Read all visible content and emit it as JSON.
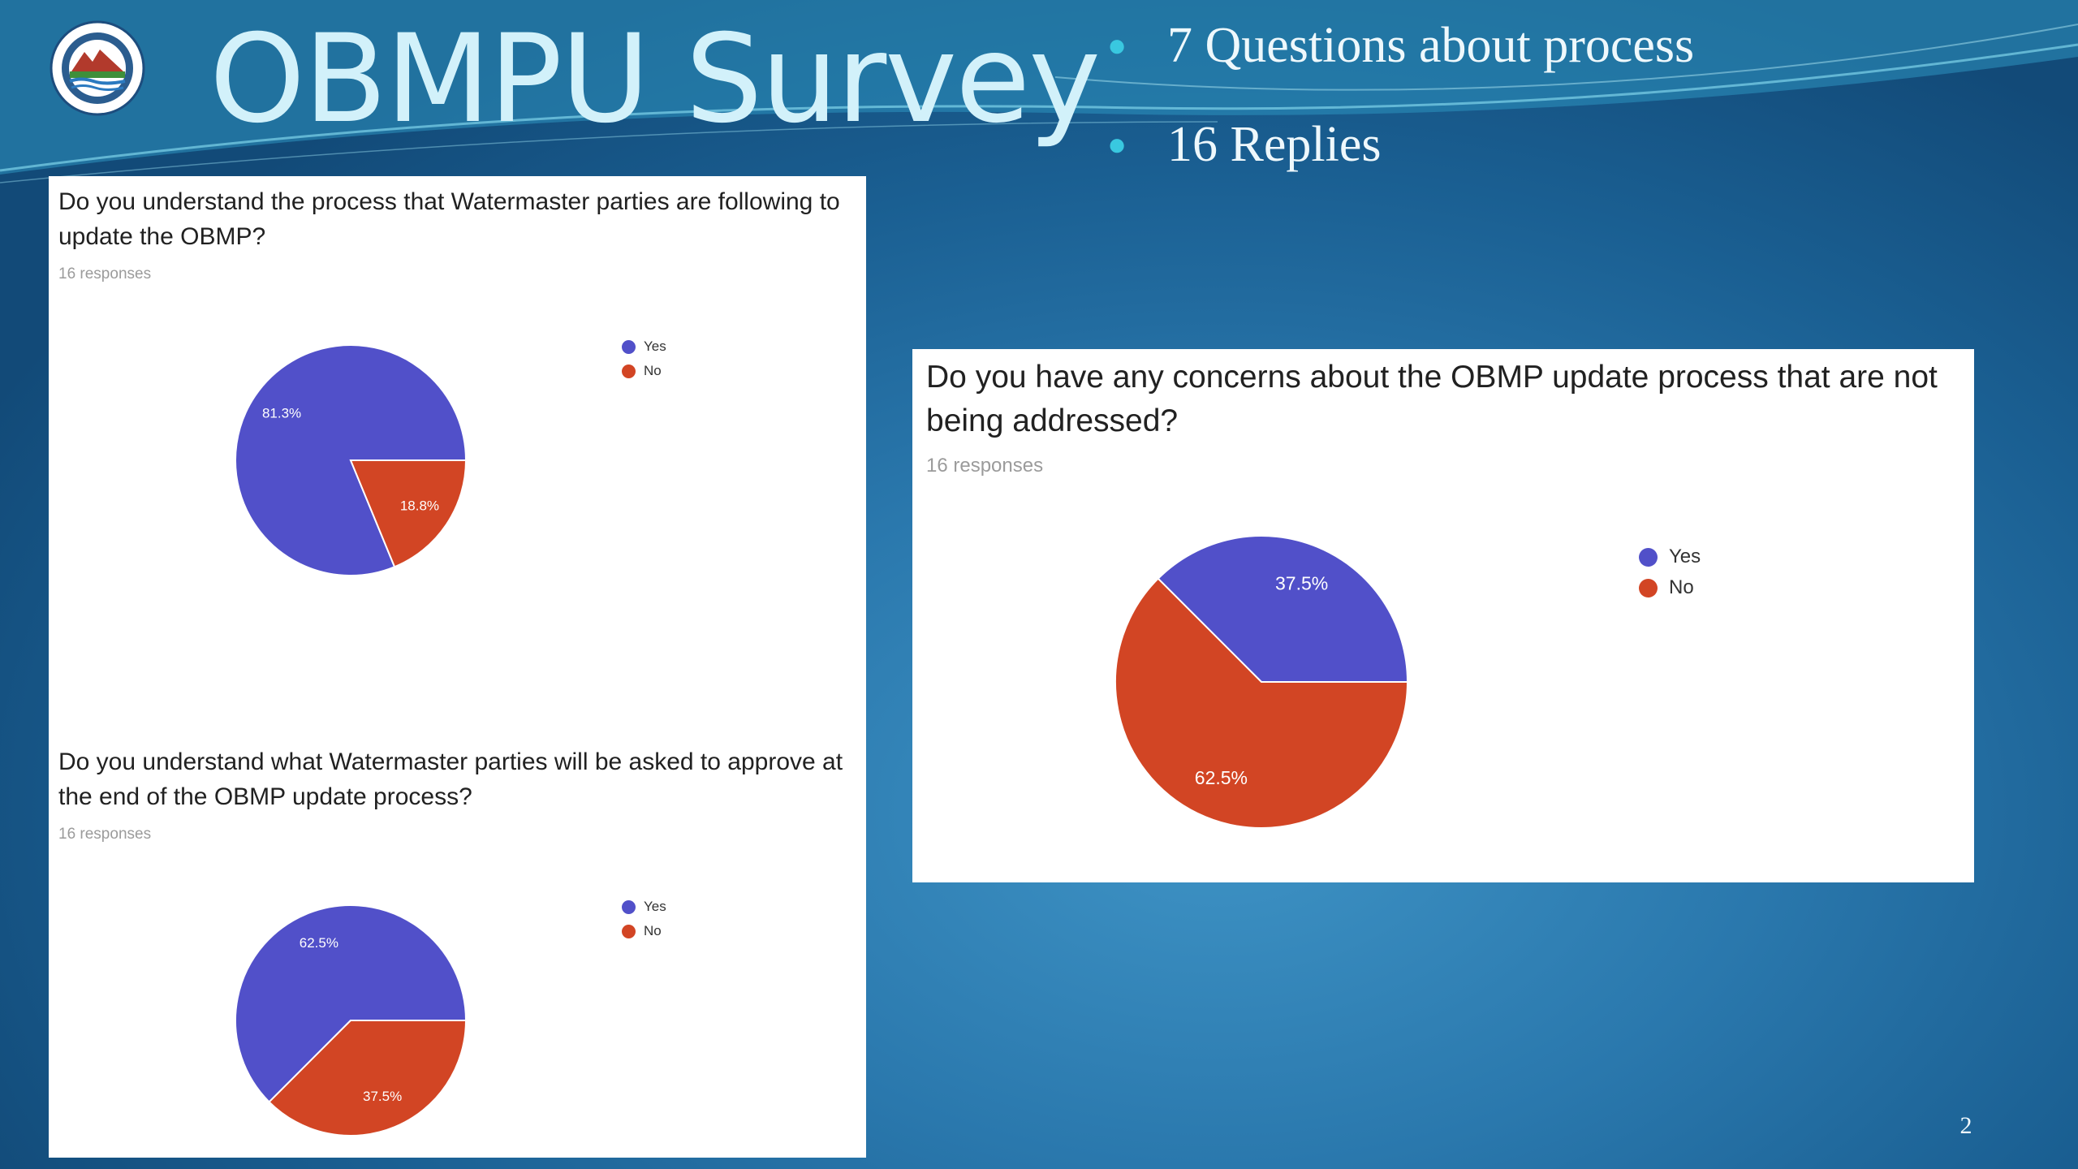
{
  "slide": {
    "title": "OBMPU Survey",
    "bullets": [
      "7 Questions about process",
      "16 Replies"
    ],
    "page_number": "2",
    "logo_icon": "chino-basin-watermaster-seal-icon"
  },
  "colors": {
    "yes": "#5150c9",
    "no": "#d24524",
    "title": "#d2f1fa",
    "bullet_dot": "#39c8e0"
  },
  "chart_data": [
    {
      "type": "pie",
      "title": "Do you understand the process that Watermaster parties are following to update the OBMP?",
      "subtitle": "16 responses",
      "categories": [
        "Yes",
        "No"
      ],
      "values": [
        81.3,
        18.8
      ],
      "labels": [
        "81.3%",
        "18.8%"
      ],
      "legend": "right"
    },
    {
      "type": "pie",
      "title": "Do you understand what Watermaster parties will be asked to approve at the end of the OBMP update process?",
      "subtitle": "16 responses",
      "categories": [
        "Yes",
        "No"
      ],
      "values": [
        62.5,
        37.5
      ],
      "labels": [
        "62.5%",
        "37.5%"
      ],
      "legend": "right"
    },
    {
      "type": "pie",
      "title": "Do you have any concerns about the OBMP update process that are not being addressed?",
      "subtitle": "16 responses",
      "categories": [
        "Yes",
        "No"
      ],
      "values": [
        37.5,
        62.5
      ],
      "labels": [
        "37.5%",
        "62.5%"
      ],
      "legend": "right"
    }
  ]
}
